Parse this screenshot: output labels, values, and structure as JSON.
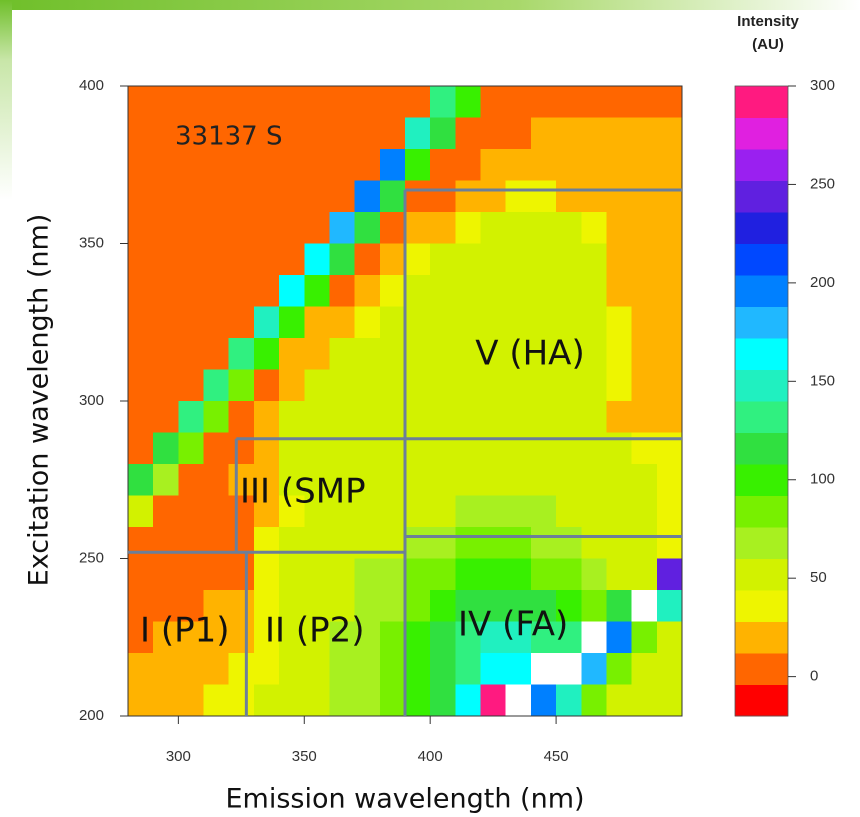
{
  "chart_data": {
    "type": "heatmap",
    "sample_label": "33137 S",
    "xlabel": "Emission wavelength (nm)",
    "ylabel": "Excitation wavelength (nm)",
    "xlim": [
      280,
      500
    ],
    "ylim": [
      200,
      400
    ],
    "xticks": [
      300,
      350,
      400,
      450
    ],
    "yticks": [
      200,
      250,
      300,
      350,
      400
    ],
    "x": [
      285,
      295,
      305,
      315,
      325,
      335,
      345,
      355,
      365,
      375,
      385,
      395,
      405,
      415,
      425,
      435,
      445,
      455,
      465,
      475,
      485,
      495
    ],
    "y": [
      395,
      385,
      375,
      365,
      355,
      345,
      335,
      325,
      315,
      305,
      295,
      285,
      275,
      265,
      255,
      245,
      235,
      225,
      215,
      205
    ],
    "z": [
      [
        5,
        5,
        5,
        5,
        5,
        5,
        5,
        5,
        5,
        5,
        5,
        5,
        140,
        100,
        5,
        5,
        5,
        5,
        5,
        5,
        5,
        5
      ],
      [
        5,
        5,
        5,
        5,
        5,
        5,
        5,
        5,
        5,
        5,
        5,
        150,
        120,
        5,
        5,
        5,
        20,
        20,
        20,
        20,
        20,
        20
      ],
      [
        5,
        5,
        5,
        5,
        5,
        5,
        5,
        5,
        5,
        5,
        190,
        100,
        5,
        10,
        20,
        20,
        20,
        20,
        20,
        20,
        20,
        20
      ],
      [
        5,
        5,
        5,
        5,
        5,
        5,
        5,
        5,
        5,
        200,
        110,
        5,
        10,
        20,
        25,
        35,
        35,
        25,
        20,
        20,
        20,
        20
      ],
      [
        5,
        5,
        5,
        5,
        5,
        5,
        5,
        5,
        180,
        110,
        10,
        15,
        20,
        40,
        50,
        50,
        50,
        50,
        40,
        20,
        20,
        20
      ],
      [
        5,
        5,
        5,
        5,
        5,
        5,
        5,
        170,
        110,
        10,
        20,
        30,
        45,
        50,
        50,
        50,
        50,
        50,
        45,
        20,
        20,
        20
      ],
      [
        5,
        5,
        5,
        5,
        5,
        5,
        160,
        100,
        10,
        20,
        30,
        45,
        50,
        50,
        50,
        50,
        50,
        50,
        45,
        25,
        20,
        20
      ],
      [
        5,
        5,
        5,
        5,
        5,
        150,
        100,
        15,
        25,
        40,
        50,
        50,
        50,
        50,
        50,
        50,
        50,
        50,
        50,
        30,
        20,
        20
      ],
      [
        5,
        5,
        5,
        5,
        140,
        95,
        15,
        25,
        45,
        50,
        50,
        50,
        50,
        50,
        50,
        50,
        50,
        50,
        50,
        30,
        20,
        20
      ],
      [
        5,
        5,
        5,
        130,
        90,
        10,
        20,
        45,
        50,
        50,
        50,
        50,
        50,
        50,
        50,
        50,
        50,
        50,
        50,
        30,
        20,
        20
      ],
      [
        5,
        5,
        125,
        85,
        10,
        20,
        45,
        50,
        50,
        50,
        50,
        50,
        50,
        50,
        50,
        50,
        50,
        50,
        45,
        25,
        20,
        20
      ],
      [
        5,
        120,
        80,
        5,
        10,
        20,
        45,
        50,
        50,
        50,
        50,
        50,
        50,
        50,
        50,
        50,
        50,
        50,
        50,
        45,
        40,
        30
      ],
      [
        110,
        70,
        5,
        10,
        15,
        20,
        45,
        50,
        50,
        50,
        50,
        55,
        55,
        55,
        55,
        55,
        55,
        55,
        50,
        50,
        45,
        40
      ],
      [
        60,
        5,
        5,
        5,
        5,
        15,
        40,
        50,
        55,
        55,
        55,
        60,
        60,
        65,
        65,
        65,
        65,
        60,
        55,
        50,
        45,
        40
      ],
      [
        5,
        5,
        5,
        5,
        10,
        30,
        45,
        55,
        55,
        60,
        60,
        70,
        75,
        80,
        80,
        80,
        75,
        70,
        60,
        50,
        45,
        40
      ],
      [
        5,
        5,
        5,
        5,
        10,
        30,
        50,
        55,
        60,
        65,
        70,
        80,
        90,
        95,
        95,
        95,
        90,
        80,
        65,
        50,
        45,
        250
      ],
      [
        5,
        5,
        10,
        15,
        20,
        35,
        50,
        55,
        60,
        65,
        70,
        85,
        95,
        110,
        120,
        120,
        110,
        100,
        90,
        120,
        320,
        150
      ],
      [
        10,
        15,
        15,
        20,
        25,
        40,
        55,
        60,
        65,
        70,
        80,
        95,
        110,
        130,
        150,
        150,
        140,
        140,
        320,
        200,
        90,
        60
      ],
      [
        15,
        20,
        20,
        25,
        30,
        40,
        55,
        60,
        65,
        75,
        85,
        100,
        120,
        140,
        160,
        170,
        320,
        320,
        180,
        90,
        60,
        50
      ],
      [
        20,
        25,
        25,
        30,
        35,
        45,
        55,
        60,
        65,
        75,
        90,
        105,
        120,
        160,
        300,
        320,
        200,
        150,
        80,
        60,
        50,
        45
      ]
    ],
    "colorbar_title": [
      "Intensity",
      "(AU)"
    ],
    "clim": [
      -20,
      300
    ],
    "cticks": [
      0,
      50,
      100,
      150,
      200,
      250,
      300
    ],
    "levels": [
      -20,
      -4,
      12,
      28,
      44,
      60,
      76,
      92,
      108,
      124,
      140,
      156,
      172,
      188,
      204,
      220,
      236,
      252,
      268,
      284,
      300
    ],
    "colors": [
      "#ff0000",
      "#ff6600",
      "#ffb300",
      "#eef500",
      "#d2f200",
      "#a8f020",
      "#78f000",
      "#38f000",
      "#30e040",
      "#30f080",
      "#20f0c0",
      "#00ffff",
      "#20b8ff",
      "#0080ff",
      "#0048ff",
      "#2020e0",
      "#6020e0",
      "#9a20f0",
      "#e020e0",
      "#ff1a80"
    ],
    "above_color": "#ffffff",
    "region_color": "#6c7f99",
    "region_lines": [
      [
        390,
        367,
        500,
        367
      ],
      [
        390,
        367,
        390,
        200
      ],
      [
        323,
        288,
        500,
        288
      ],
      [
        323,
        288,
        323,
        252
      ],
      [
        280,
        252,
        390,
        252
      ],
      [
        327,
        252,
        327,
        200
      ],
      [
        390,
        257,
        500,
        257
      ]
    ],
    "region_labels": [
      "I (P1)",
      "II (P2)",
      "III (SMP",
      "IV (FA)",
      "V (HA)"
    ]
  }
}
